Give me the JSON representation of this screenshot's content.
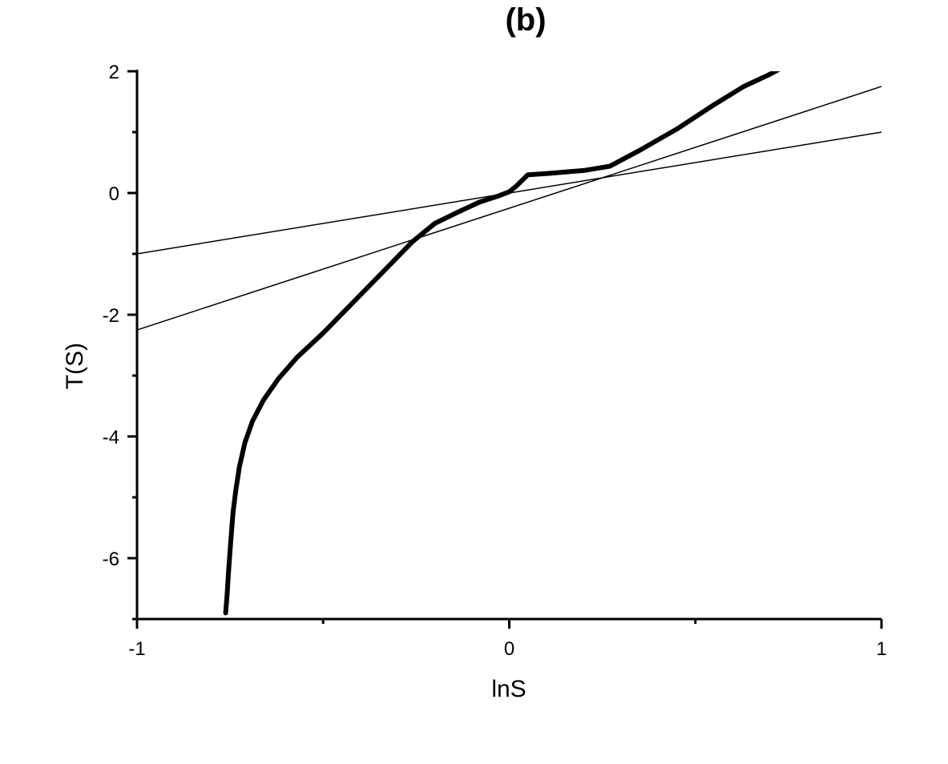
{
  "chart_data": {
    "type": "line",
    "title": "(b)",
    "xlabel": "lnS",
    "ylabel": "T(S)",
    "xlim": [
      -1,
      1
    ],
    "ylim": [
      -7,
      2
    ],
    "x_ticks": [
      -1,
      0,
      1
    ],
    "x_minor_ticks": [
      -0.5,
      0.5
    ],
    "y_ticks": [
      -6,
      -4,
      -2,
      0,
      2
    ],
    "y_minor_ticks": [
      -7,
      -5,
      -3,
      -1,
      1
    ],
    "grid": false,
    "legend": "none",
    "series": [
      {
        "style": "thick-curve",
        "color": "#000000",
        "x": [
          -0.762,
          -0.758,
          -0.754,
          -0.748,
          -0.742,
          -0.735,
          -0.725,
          -0.71,
          -0.69,
          -0.66,
          -0.62,
          -0.57,
          -0.5,
          -0.42,
          -0.34,
          -0.26,
          -0.2,
          -0.14,
          -0.08,
          -0.03,
          0.0,
          0.02,
          0.05,
          0.1,
          0.2,
          0.27,
          0.35,
          0.45,
          0.55,
          0.63,
          0.7,
          0.73,
          0.75
        ],
        "y": [
          -6.9,
          -6.6,
          -6.2,
          -5.7,
          -5.25,
          -4.9,
          -4.5,
          -4.1,
          -3.75,
          -3.4,
          -3.05,
          -2.7,
          -2.3,
          -1.8,
          -1.3,
          -0.8,
          -0.5,
          -0.32,
          -0.15,
          -0.05,
          0.02,
          0.12,
          0.3,
          0.32,
          0.37,
          0.44,
          0.7,
          1.05,
          1.45,
          1.75,
          1.95,
          2.05,
          2.1
        ]
      },
      {
        "style": "thin-line",
        "color": "#000000",
        "x": [
          -1,
          1
        ],
        "y": [
          -1,
          1
        ]
      },
      {
        "style": "thin-line",
        "color": "#000000",
        "x": [
          -1,
          1
        ],
        "y": [
          -2.25,
          1.75
        ]
      }
    ]
  }
}
